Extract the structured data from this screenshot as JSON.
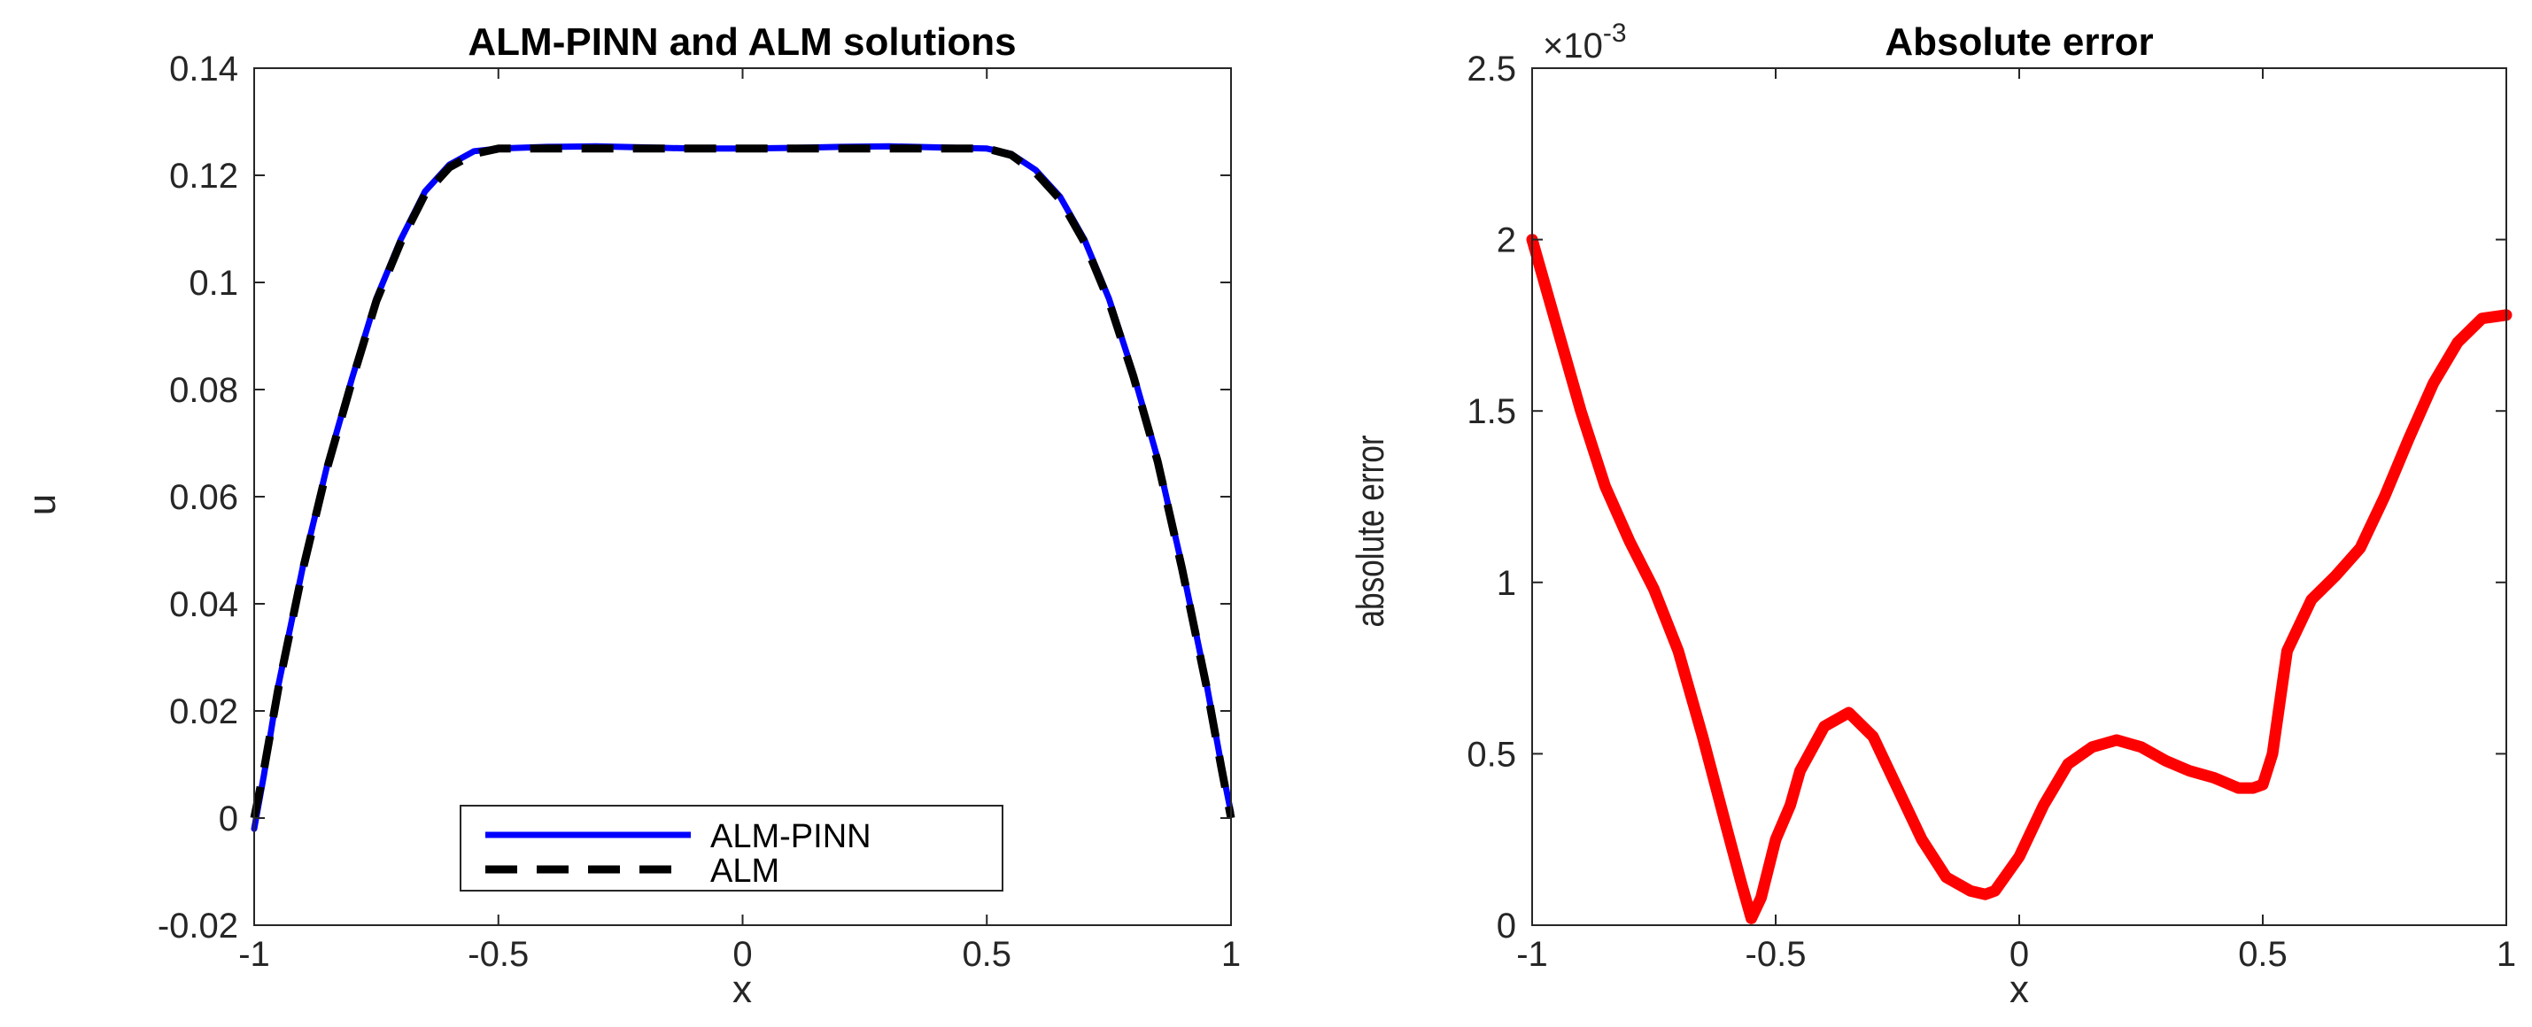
{
  "chart_data": [
    {
      "type": "line",
      "title": "ALM-PINN and ALM solutions",
      "xlabel": "x",
      "ylabel": "u",
      "xlim": [
        -1,
        1
      ],
      "ylim": [
        -0.02,
        0.14
      ],
      "xticks": [
        -1,
        -0.5,
        0,
        0.5,
        1
      ],
      "xtick_labels": [
        "-1",
        "-0.5",
        "0",
        "0.5",
        "1"
      ],
      "yticks": [
        -0.02,
        0,
        0.02,
        0.04,
        0.06,
        0.08,
        0.1,
        0.12,
        0.14
      ],
      "ytick_labels": [
        "-0.02",
        "0",
        "0.02",
        "0.04",
        "0.06",
        "0.08",
        "0.1",
        "0.12",
        "0.14"
      ],
      "grid": false,
      "legend_position": "bottom-center",
      "series": [
        {
          "name": "ALM-PINN",
          "color": "#0000ff",
          "style": "solid",
          "x": [
            -1.0,
            -0.98,
            -0.95,
            -0.9,
            -0.85,
            -0.8,
            -0.75,
            -0.7,
            -0.65,
            -0.6,
            -0.55,
            -0.5,
            -0.4,
            -0.3,
            -0.2,
            -0.1,
            0.0,
            0.1,
            0.2,
            0.3,
            0.4,
            0.5,
            0.55,
            0.6,
            0.65,
            0.7,
            0.75,
            0.8,
            0.85,
            0.9,
            0.95,
            0.98,
            1.0
          ],
          "y": [
            -0.002,
            0.008,
            0.025,
            0.047,
            0.066,
            0.082,
            0.097,
            0.108,
            0.117,
            0.122,
            0.1245,
            0.125,
            0.1253,
            0.1254,
            0.1252,
            0.125,
            0.125,
            0.1251,
            0.1253,
            0.1254,
            0.1252,
            0.125,
            0.124,
            0.121,
            0.116,
            0.108,
            0.097,
            0.083,
            0.067,
            0.047,
            0.025,
            0.01,
            0.001
          ]
        },
        {
          "name": "ALM",
          "color": "#000000",
          "style": "dashed",
          "x": [
            -1.0,
            -0.98,
            -0.95,
            -0.9,
            -0.85,
            -0.8,
            -0.75,
            -0.7,
            -0.65,
            -0.6,
            -0.55,
            -0.5,
            -0.4,
            -0.3,
            -0.2,
            -0.1,
            0.0,
            0.1,
            0.2,
            0.3,
            0.4,
            0.5,
            0.55,
            0.6,
            0.65,
            0.7,
            0.75,
            0.8,
            0.85,
            0.9,
            0.95,
            0.98,
            1.0
          ],
          "y": [
            0.0,
            0.009,
            0.0245,
            0.0465,
            0.0655,
            0.0815,
            0.0965,
            0.1075,
            0.1165,
            0.1215,
            0.124,
            0.125,
            0.125,
            0.125,
            0.125,
            0.125,
            0.125,
            0.125,
            0.125,
            0.125,
            0.125,
            0.125,
            0.1238,
            0.1205,
            0.1155,
            0.1075,
            0.0965,
            0.0825,
            0.0665,
            0.0465,
            0.0245,
            0.0095,
            0.0
          ]
        }
      ]
    },
    {
      "type": "line",
      "title": "Absolute error",
      "xlabel": "x",
      "ylabel": "absolute error",
      "xlim": [
        -1,
        1
      ],
      "ylim": [
        0,
        2.5
      ],
      "y_scale_multiplier": "×10⁻³",
      "exponent_base": "×10",
      "exponent_power": "-3",
      "xticks": [
        -1,
        -0.5,
        0,
        0.5,
        1
      ],
      "xtick_labels": [
        "-1",
        "-0.5",
        "0",
        "0.5",
        "1"
      ],
      "yticks": [
        0,
        0.5,
        1,
        1.5,
        2,
        2.5
      ],
      "ytick_labels": [
        "0",
        "0.5",
        "1",
        "1.5",
        "2",
        "2.5"
      ],
      "grid": false,
      "series": [
        {
          "color": "#ff0000",
          "style": "solid",
          "x": [
            -1.0,
            -0.95,
            -0.9,
            -0.85,
            -0.8,
            -0.75,
            -0.7,
            -0.65,
            -0.6,
            -0.57,
            -0.55,
            -0.53,
            -0.5,
            -0.47,
            -0.45,
            -0.4,
            -0.35,
            -0.3,
            -0.25,
            -0.2,
            -0.15,
            -0.1,
            -0.07,
            -0.05,
            0.0,
            0.05,
            0.1,
            0.15,
            0.2,
            0.25,
            0.3,
            0.35,
            0.4,
            0.45,
            0.48,
            0.5,
            0.52,
            0.55,
            0.6,
            0.65,
            0.7,
            0.75,
            0.8,
            0.85,
            0.9,
            0.95,
            1.0
          ],
          "y": [
            2.0,
            1.75,
            1.5,
            1.28,
            1.12,
            0.98,
            0.8,
            0.55,
            0.28,
            0.12,
            0.02,
            0.08,
            0.25,
            0.35,
            0.45,
            0.58,
            0.62,
            0.55,
            0.4,
            0.25,
            0.14,
            0.1,
            0.09,
            0.1,
            0.2,
            0.35,
            0.47,
            0.52,
            0.54,
            0.52,
            0.48,
            0.45,
            0.43,
            0.4,
            0.4,
            0.41,
            0.5,
            0.8,
            0.95,
            1.02,
            1.1,
            1.25,
            1.42,
            1.58,
            1.7,
            1.77,
            1.78
          ]
        }
      ]
    }
  ]
}
